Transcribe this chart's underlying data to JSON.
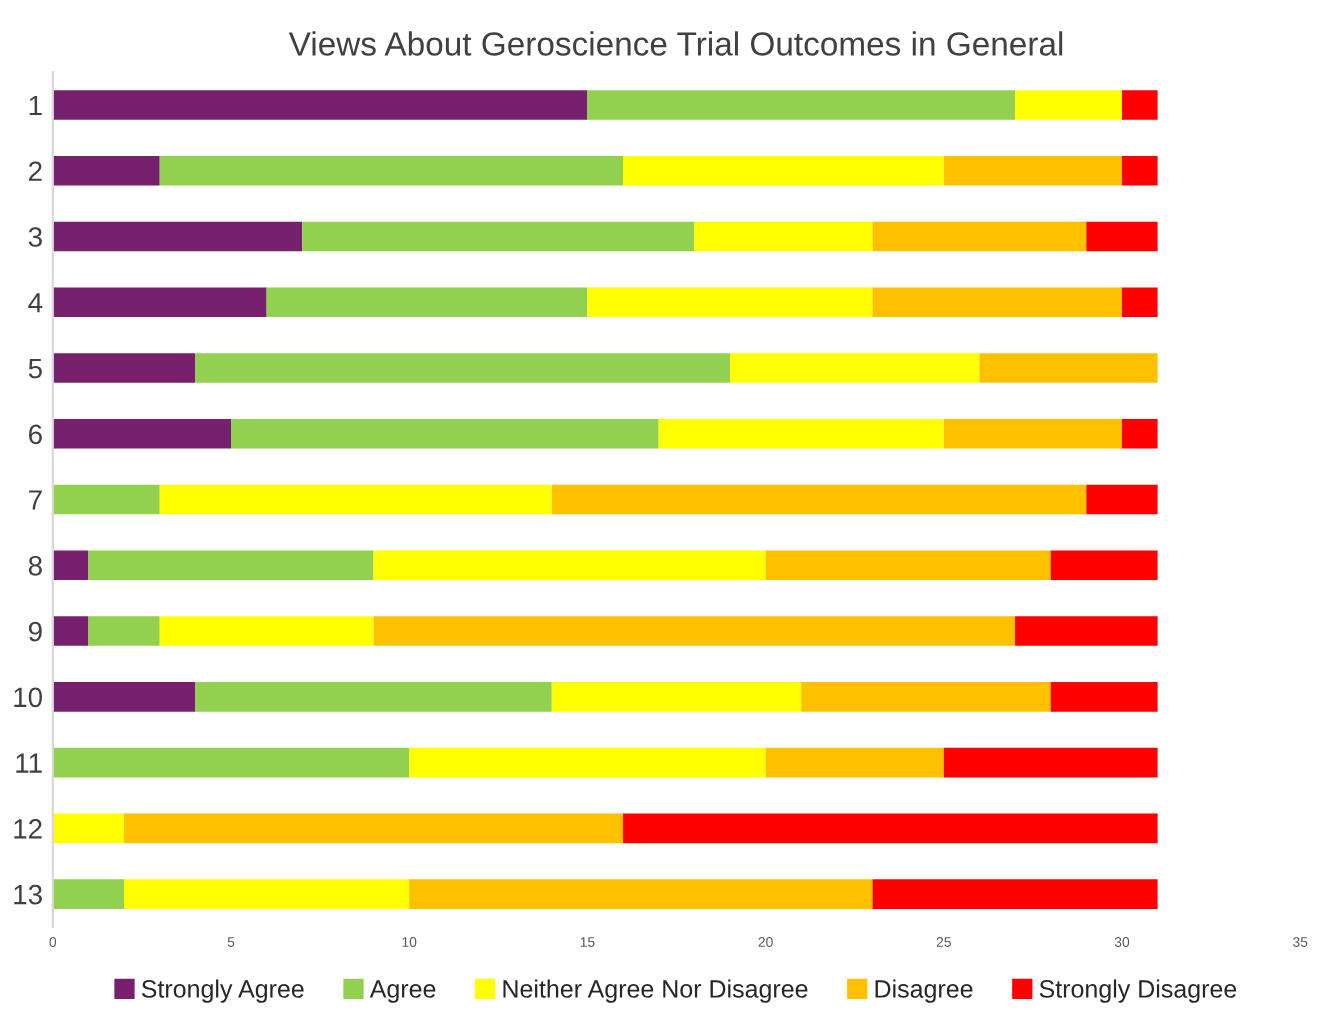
{
  "chart_data": {
    "type": "bar",
    "orientation": "horizontal",
    "stacked": true,
    "title": "Views About Geroscience Trial Outcomes in General",
    "categories": [
      "1",
      "2",
      "3",
      "4",
      "5",
      "6",
      "7",
      "8",
      "9",
      "10",
      "11",
      "12",
      "13"
    ],
    "series": [
      {
        "name": "Strongly Agree",
        "color": "#76206e",
        "values": [
          15,
          3,
          7,
          6,
          4,
          5,
          0,
          1,
          1,
          4,
          0,
          0,
          0
        ]
      },
      {
        "name": "Agree",
        "color": "#92d050",
        "values": [
          12,
          13,
          11,
          9,
          15,
          12,
          3,
          8,
          2,
          10,
          10,
          0,
          2
        ]
      },
      {
        "name": "Neither Agree Nor Disagree",
        "color": "#ffff00",
        "values": [
          3,
          9,
          5,
          8,
          7,
          8,
          11,
          11,
          6,
          7,
          10,
          2,
          8
        ]
      },
      {
        "name": "Disagree",
        "color": "#ffc000",
        "values": [
          0,
          5,
          6,
          7,
          5,
          5,
          15,
          8,
          18,
          7,
          5,
          14,
          13
        ]
      },
      {
        "name": "Strongly Disagree",
        "color": "#ff0000",
        "values": [
          1,
          1,
          2,
          1,
          0,
          1,
          2,
          3,
          4,
          3,
          6,
          15,
          8
        ]
      }
    ],
    "xlim": [
      0,
      35
    ],
    "xticks": [
      0,
      5,
      10,
      15,
      20,
      25,
      30,
      35
    ],
    "grid": false,
    "legend": "bottom"
  }
}
